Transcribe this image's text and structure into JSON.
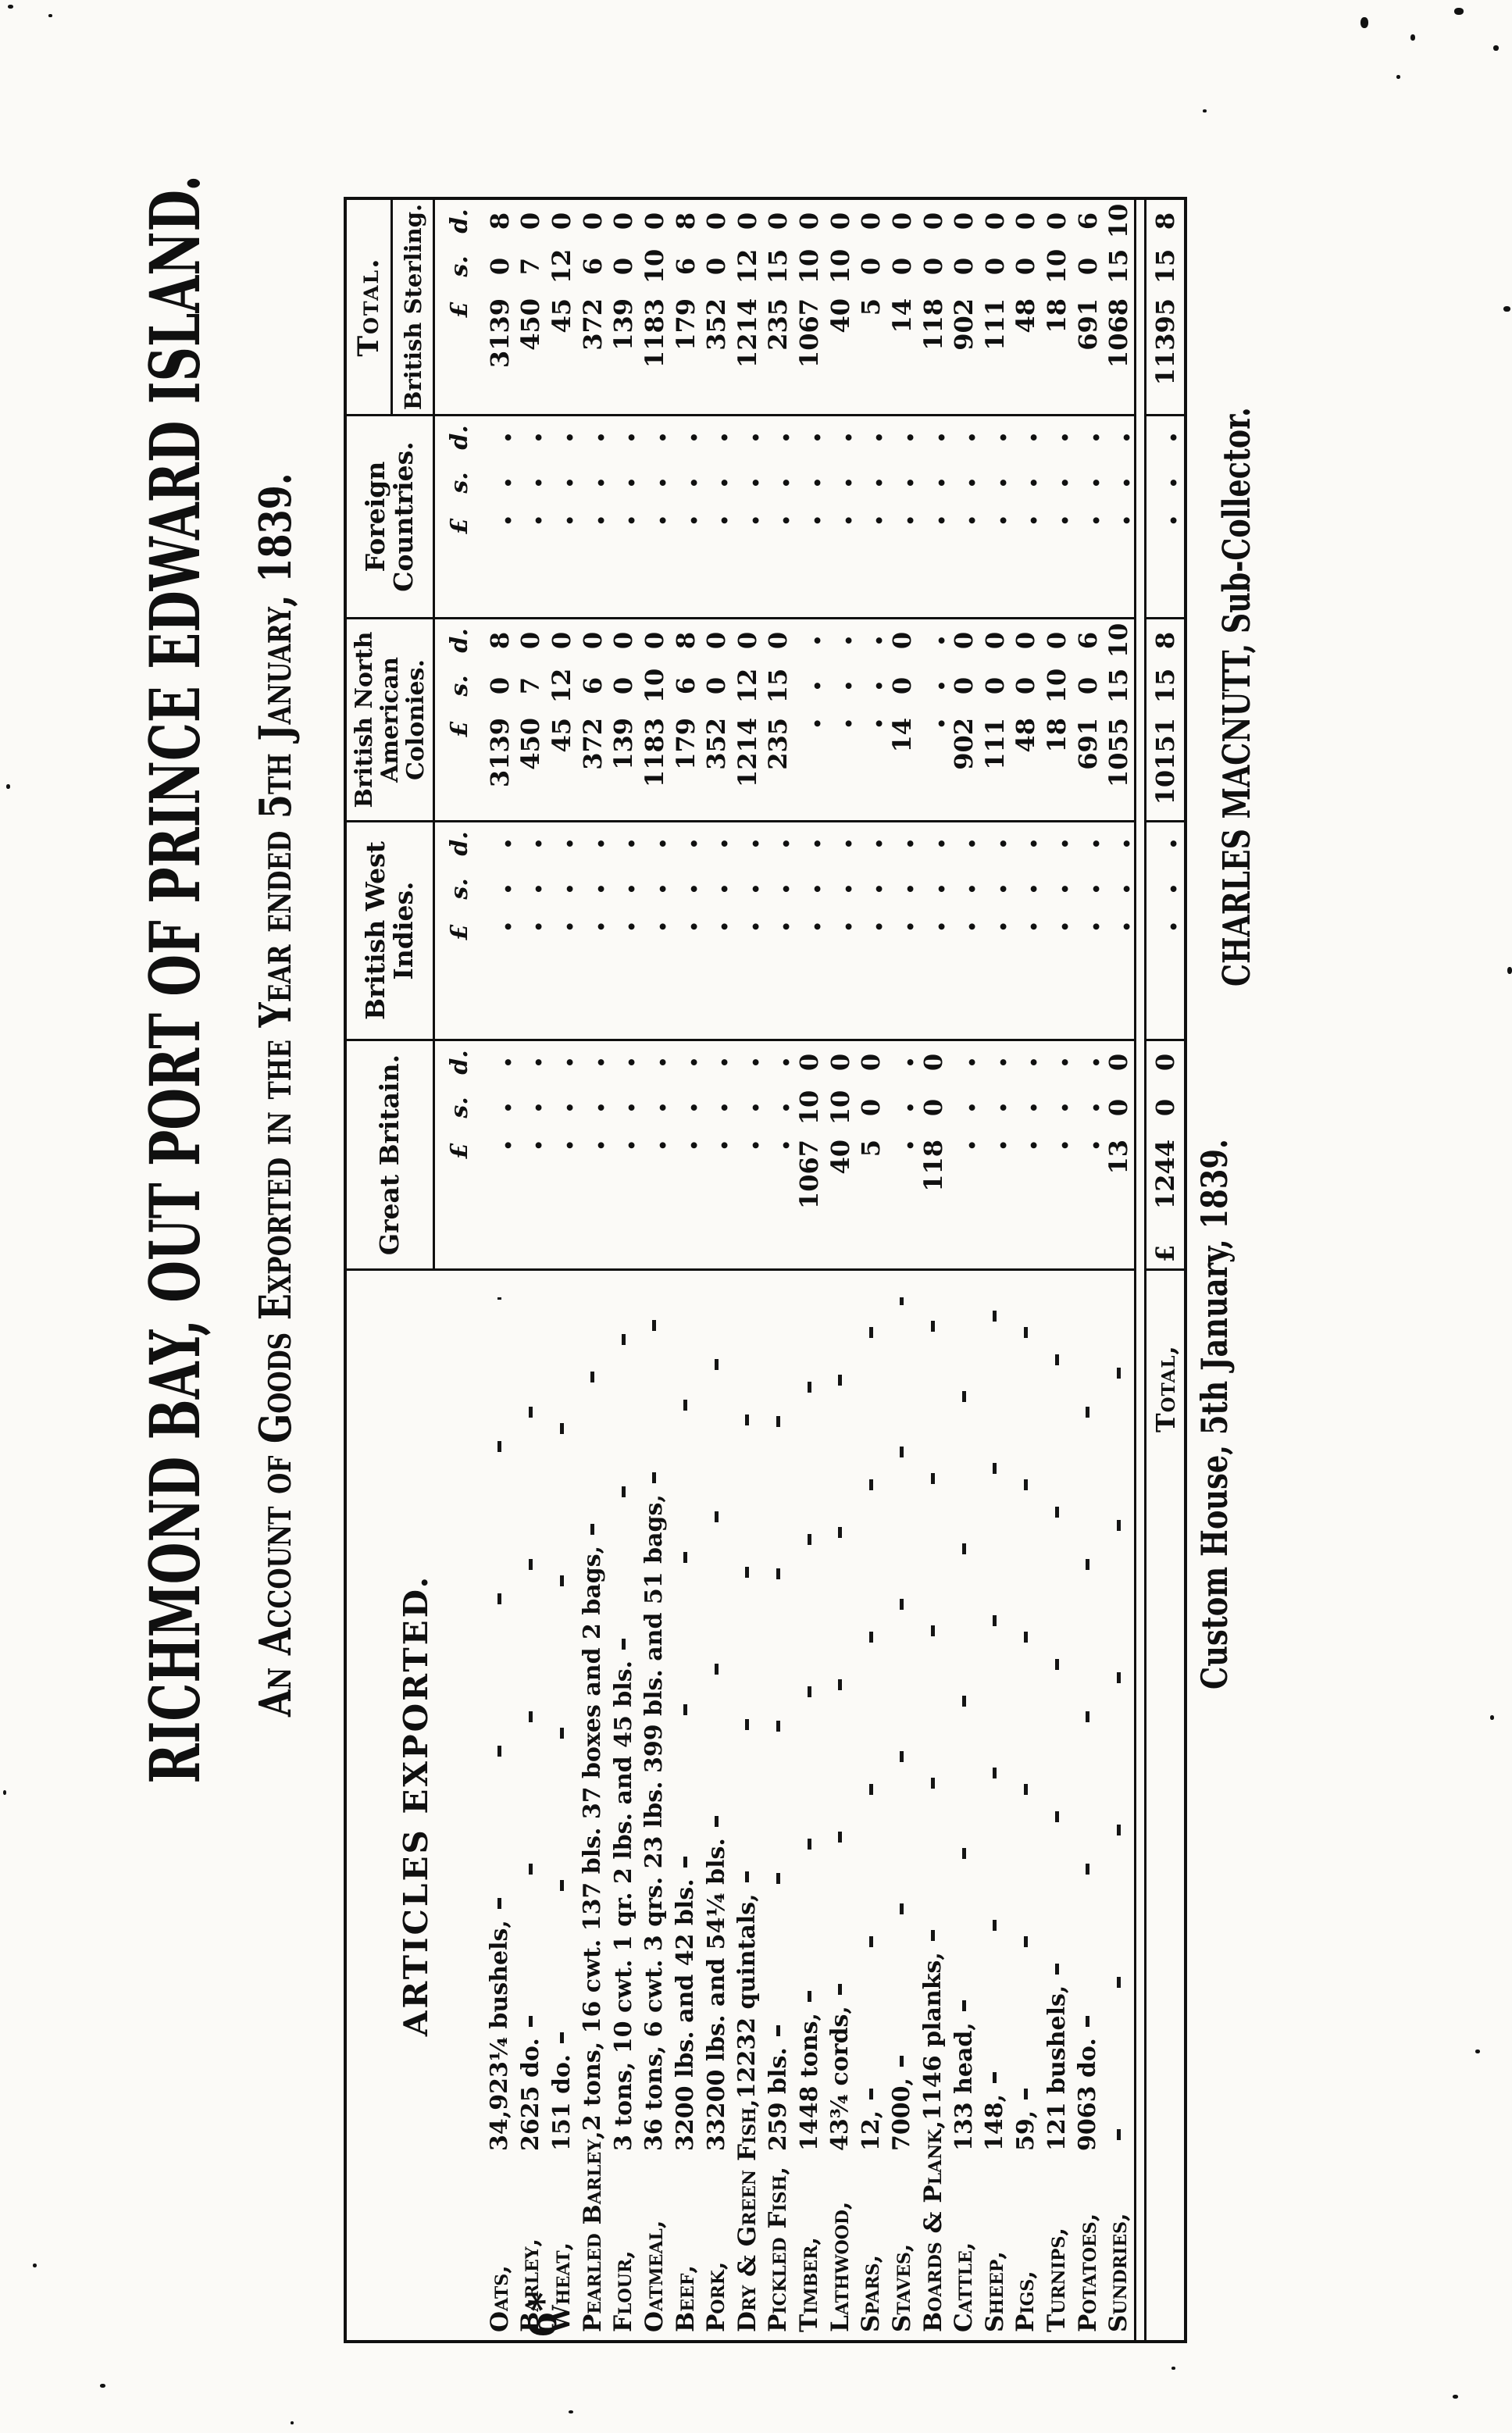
{
  "page_mark": "6*",
  "title": "RICHMOND BAY, OUT PORT OF PRINCE EDWARD ISLAND.",
  "subtitle": "An Account of Goods Exported in the Year ended 5th January, 1839.",
  "footer": {
    "left": "Custom House, 5th January, 1839.",
    "right": "CHARLES MACNUTT, Sub-Collector."
  },
  "table": {
    "articles_header": "ARTICLES EXPORTED.",
    "columns": {
      "gb": {
        "label": "Great Britain."
      },
      "bwi": {
        "label": "British West Indies."
      },
      "bnac": {
        "label_line1": "British North",
        "label_line2": "American Colonies."
      },
      "fc": {
        "label": "Foreign Countries."
      },
      "total": {
        "label": "Total.",
        "sublabel": "British Sterling."
      }
    },
    "currency_header": {
      "pound": "£",
      "shilling": "s.",
      "pence": "d."
    },
    "rows": [
      {
        "article": "Oats,",
        "quantity": "34,923¼ bushels,",
        "gb": null,
        "bwi": null,
        "bnac": [
          "3139",
          "0",
          "8"
        ],
        "fc": null,
        "total": [
          "3139",
          "0",
          "8"
        ]
      },
      {
        "article": "Barley,",
        "quantity": "2625 do.",
        "gb": null,
        "bwi": null,
        "bnac": [
          "450",
          "7",
          "0"
        ],
        "fc": null,
        "total": [
          "450",
          "7",
          "0"
        ]
      },
      {
        "article": "Wheat,",
        "quantity": "151 do.",
        "gb": null,
        "bwi": null,
        "bnac": [
          "45",
          "12",
          "0"
        ],
        "fc": null,
        "total": [
          "45",
          "12",
          "0"
        ]
      },
      {
        "article": "Pearled Barley,",
        "quantity": "2 tons, 16 cwt. 137 bls. 37 boxes and 2 bags,",
        "gb": null,
        "bwi": null,
        "bnac": [
          "372",
          "6",
          "0"
        ],
        "fc": null,
        "total": [
          "372",
          "6",
          "0"
        ]
      },
      {
        "article": "Flour,",
        "quantity": "3 tons, 10 cwt. 1 qr. 2 lbs. and 45 bls.",
        "gb": null,
        "bwi": null,
        "bnac": [
          "139",
          "0",
          "0"
        ],
        "fc": null,
        "total": [
          "139",
          "0",
          "0"
        ]
      },
      {
        "article": "Oatmeal,",
        "quantity": "36 tons, 6 cwt. 3 qrs. 23 lbs. 399 bls. and 51 bags,",
        "gb": null,
        "bwi": null,
        "bnac": [
          "1183",
          "10",
          "0"
        ],
        "fc": null,
        "total": [
          "1183",
          "10",
          "0"
        ]
      },
      {
        "article": "Beef,",
        "quantity": "3200 lbs. and 42 bls.",
        "gb": null,
        "bwi": null,
        "bnac": [
          "179",
          "6",
          "8"
        ],
        "fc": null,
        "total": [
          "179",
          "6",
          "8"
        ]
      },
      {
        "article": "Pork,",
        "quantity": "33200 lbs. and 54¼ bls.",
        "gb": null,
        "bwi": null,
        "bnac": [
          "352",
          "0",
          "0"
        ],
        "fc": null,
        "total": [
          "352",
          "0",
          "0"
        ]
      },
      {
        "article": "Dry & Green Fish,",
        "quantity": "12232 quintals,",
        "gb": null,
        "bwi": null,
        "bnac": [
          "1214",
          "12",
          "0"
        ],
        "fc": null,
        "total": [
          "1214",
          "12",
          "0"
        ]
      },
      {
        "article": "Pickled Fish,",
        "quantity": "259 bls.",
        "gb": null,
        "bwi": null,
        "bnac": [
          "235",
          "15",
          "0"
        ],
        "fc": null,
        "total": [
          "235",
          "15",
          "0"
        ]
      },
      {
        "article": "Timber,",
        "quantity": "1448 tons,",
        "gb": [
          "1067",
          "10",
          "0"
        ],
        "bwi": null,
        "bnac": null,
        "fc": null,
        "total": [
          "1067",
          "10",
          "0"
        ]
      },
      {
        "article": "Lathwood,",
        "quantity": "43¾ cords,",
        "gb": [
          "40",
          "10",
          "0"
        ],
        "bwi": null,
        "bnac": null,
        "fc": null,
        "total": [
          "40",
          "10",
          "0"
        ]
      },
      {
        "article": "Spars,",
        "quantity": "12,",
        "gb": [
          "5",
          "0",
          "0"
        ],
        "bwi": null,
        "bnac": null,
        "fc": null,
        "total": [
          "5",
          "0",
          "0"
        ]
      },
      {
        "article": "Staves,",
        "quantity": "7000,",
        "gb": null,
        "bwi": null,
        "bnac": [
          "14",
          "0",
          "0"
        ],
        "fc": null,
        "total": [
          "14",
          "0",
          "0"
        ]
      },
      {
        "article": "Boards & Plank,",
        "quantity": "1146 planks,",
        "gb": [
          "118",
          "0",
          "0"
        ],
        "bwi": null,
        "bnac": null,
        "fc": null,
        "total": [
          "118",
          "0",
          "0"
        ]
      },
      {
        "article": "Cattle,",
        "quantity": "133 head,",
        "gb": null,
        "bwi": null,
        "bnac": [
          "902",
          "0",
          "0"
        ],
        "fc": null,
        "total": [
          "902",
          "0",
          "0"
        ]
      },
      {
        "article": "Sheep,",
        "quantity": "148,",
        "gb": null,
        "bwi": null,
        "bnac": [
          "111",
          "0",
          "0"
        ],
        "fc": null,
        "total": [
          "111",
          "0",
          "0"
        ]
      },
      {
        "article": "Pigs,",
        "quantity": "59,",
        "gb": null,
        "bwi": null,
        "bnac": [
          "48",
          "0",
          "0"
        ],
        "fc": null,
        "total": [
          "48",
          "0",
          "0"
        ]
      },
      {
        "article": "Turnips,",
        "quantity": "121 bushels,",
        "gb": null,
        "bwi": null,
        "bnac": [
          "18",
          "10",
          "0"
        ],
        "fc": null,
        "total": [
          "18",
          "10",
          "0"
        ]
      },
      {
        "article": "Potatoes,",
        "quantity": "9063 do.",
        "gb": null,
        "bwi": null,
        "bnac": [
          "691",
          "0",
          "6"
        ],
        "fc": null,
        "total": [
          "691",
          "0",
          "6"
        ]
      },
      {
        "article": "Sundries,",
        "quantity": "",
        "gb": [
          "13",
          "0",
          "0"
        ],
        "bwi": null,
        "bnac": [
          "1055",
          "15",
          "10"
        ],
        "fc": null,
        "total": [
          "1068",
          "15",
          "10"
        ]
      }
    ],
    "total_row": {
      "label": "Total,",
      "currency_sign": "£",
      "gb": [
        "1244",
        "0",
        "0"
      ],
      "bwi": null,
      "bnac": [
        "10151",
        "15",
        "8"
      ],
      "fc": null,
      "total": [
        "11395",
        "15",
        "8"
      ]
    }
  }
}
